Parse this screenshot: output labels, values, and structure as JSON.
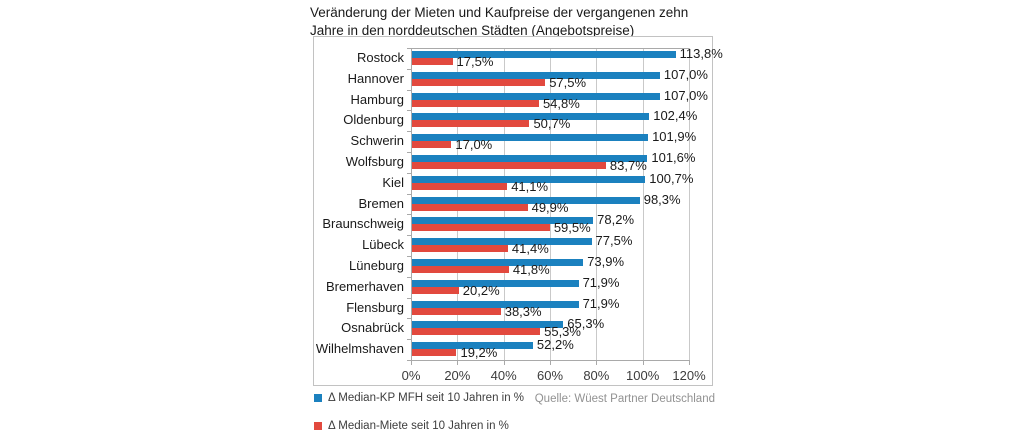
{
  "header": {
    "title_line1": "Veränderung der Mieten und Kaufpreise der vergangenen zehn",
    "title_line2": "Jahre in den norddeutschen Städten (Angebotspreise)"
  },
  "chart_data": {
    "type": "bar",
    "orientation": "horizontal",
    "title": "Veränderung der Mieten und Kaufpreise der vergangenen zehn Jahre in den norddeutschen Städten (Angebotspreise)",
    "categories": [
      "Rostock",
      "Hannover",
      "Hamburg",
      "Oldenburg",
      "Schwerin",
      "Wolfsburg",
      "Kiel",
      "Bremen",
      "Braunschweig",
      "Lübeck",
      "Lüneburg",
      "Bremerhaven",
      "Flensburg",
      "Osnabrück",
      "Wilhelmshaven"
    ],
    "series": [
      {
        "name": "Δ Median-KP MFH seit 10 Jahren in %",
        "color": "#1B81BF",
        "values": [
          113.8,
          107.0,
          107.0,
          102.4,
          101.9,
          101.6,
          100.7,
          98.3,
          78.2,
          77.5,
          73.9,
          71.9,
          71.9,
          65.3,
          52.2
        ],
        "value_labels": [
          "113,8%",
          "107,0%",
          "107,0%",
          "102,4%",
          "101,9%",
          "101,6%",
          "100,7%",
          "98,3%",
          "78,2%",
          "77,5%",
          "73,9%",
          "71,9%",
          "71,9%",
          "65,3%",
          "52,2%"
        ]
      },
      {
        "name": "Δ Median-Miete seit 10 Jahren in %",
        "color": "#E2493E",
        "values": [
          17.5,
          57.5,
          54.8,
          50.7,
          17.0,
          83.7,
          41.1,
          49.9,
          59.5,
          41.4,
          41.8,
          20.2,
          38.3,
          55.3,
          19.2
        ],
        "value_labels": [
          "17,5%",
          "57,5%",
          "54,8%",
          "50,7%",
          "17,0%",
          "83,7%",
          "41,1%",
          "49,9%",
          "59,5%",
          "41,4%",
          "41,8%",
          "20,2%",
          "38,3%",
          "55,3%",
          "19,2%"
        ]
      }
    ],
    "xlabel": "",
    "ylabel": "",
    "xlim": [
      0,
      120
    ],
    "x_ticks": [
      "0%",
      "20%",
      "40%",
      "60%",
      "80%",
      "100%",
      "120%"
    ],
    "grid": true,
    "legend_position": "bottom-left",
    "source": "Quelle: Wüest Partner Deutschland"
  }
}
